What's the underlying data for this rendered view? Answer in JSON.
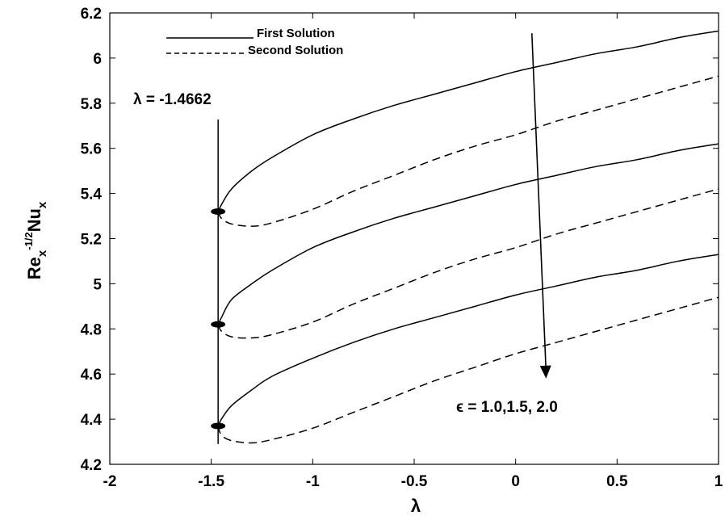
{
  "chart_data": {
    "type": "line",
    "xlabel": "λ",
    "ylabel_parts": {
      "base1": "Re",
      "sub1": "x",
      "sup1": "-1/2",
      "base2": "Nu",
      "sub2": "x"
    },
    "xlim": [
      -2,
      1
    ],
    "ylim": [
      4.2,
      6.2
    ],
    "xticks": [
      -2,
      -1.5,
      -1,
      -0.5,
      0,
      0.5,
      1
    ],
    "xtick_labels": [
      "-2",
      "-1.5",
      "-1",
      "-0.5",
      "0",
      "0.5",
      "1"
    ],
    "yticks": [
      4.2,
      4.4,
      4.6,
      4.8,
      5.0,
      5.2,
      5.4,
      5.6,
      5.8,
      6.0,
      6.2
    ],
    "ytick_labels": [
      "4.2",
      "4.4",
      "4.6",
      "4.8",
      "5",
      "5.2",
      "5.4",
      "5.6",
      "5.8",
      "6",
      "6.2"
    ],
    "legend": {
      "placement": "top-left",
      "entries": [
        {
          "style": "solid",
          "label": "First Solution"
        },
        {
          "style": "dashed",
          "label": "Second Solution"
        }
      ]
    },
    "annotations": {
      "critical_label": "λ = -1.4662",
      "critical_x": -1.4662,
      "epsilon_label": "ϵ = 1.0,1.5, 2.0",
      "arrow_from": [
        0.08,
        6.11
      ],
      "arrow_to": [
        0.15,
        4.58
      ]
    },
    "series": [
      {
        "style": "solid",
        "points": [
          [
            -1.4662,
            5.32
          ],
          [
            -1.45,
            5.35
          ],
          [
            -1.4,
            5.42
          ],
          [
            -1.3,
            5.5
          ],
          [
            -1.2,
            5.56
          ],
          [
            -1.0,
            5.66
          ],
          [
            -0.8,
            5.73
          ],
          [
            -0.6,
            5.79
          ],
          [
            -0.4,
            5.84
          ],
          [
            -0.2,
            5.89
          ],
          [
            0,
            5.94
          ],
          [
            0.2,
            5.98
          ],
          [
            0.4,
            6.02
          ],
          [
            0.6,
            6.05
          ],
          [
            0.8,
            6.09
          ],
          [
            1.0,
            6.12
          ]
        ]
      },
      {
        "style": "dashed",
        "points": [
          [
            -1.4662,
            5.32
          ],
          [
            -1.45,
            5.29
          ],
          [
            -1.4,
            5.265
          ],
          [
            -1.3,
            5.255
          ],
          [
            -1.2,
            5.27
          ],
          [
            -1.0,
            5.33
          ],
          [
            -0.8,
            5.41
          ],
          [
            -0.6,
            5.48
          ],
          [
            -0.4,
            5.55
          ],
          [
            -0.2,
            5.61
          ],
          [
            0,
            5.66
          ],
          [
            0.2,
            5.72
          ],
          [
            0.4,
            5.77
          ],
          [
            0.6,
            5.82
          ],
          [
            0.8,
            5.87
          ],
          [
            1.0,
            5.92
          ]
        ]
      },
      {
        "style": "solid",
        "points": [
          [
            -1.4662,
            4.82
          ],
          [
            -1.45,
            4.85
          ],
          [
            -1.4,
            4.93
          ],
          [
            -1.3,
            5.0
          ],
          [
            -1.2,
            5.06
          ],
          [
            -1.0,
            5.16
          ],
          [
            -0.8,
            5.23
          ],
          [
            -0.6,
            5.29
          ],
          [
            -0.4,
            5.34
          ],
          [
            -0.2,
            5.39
          ],
          [
            0,
            5.44
          ],
          [
            0.2,
            5.48
          ],
          [
            0.4,
            5.52
          ],
          [
            0.6,
            5.55
          ],
          [
            0.8,
            5.59
          ],
          [
            1.0,
            5.62
          ]
        ]
      },
      {
        "style": "dashed",
        "points": [
          [
            -1.4662,
            4.82
          ],
          [
            -1.45,
            4.79
          ],
          [
            -1.4,
            4.765
          ],
          [
            -1.3,
            4.76
          ],
          [
            -1.2,
            4.775
          ],
          [
            -1.0,
            4.83
          ],
          [
            -0.8,
            4.91
          ],
          [
            -0.6,
            4.98
          ],
          [
            -0.4,
            5.05
          ],
          [
            -0.2,
            5.11
          ],
          [
            0,
            5.16
          ],
          [
            0.2,
            5.22
          ],
          [
            0.4,
            5.27
          ],
          [
            0.6,
            5.32
          ],
          [
            0.8,
            5.37
          ],
          [
            1.0,
            5.42
          ]
        ]
      },
      {
        "style": "solid",
        "points": [
          [
            -1.4662,
            4.37
          ],
          [
            -1.45,
            4.4
          ],
          [
            -1.4,
            4.46
          ],
          [
            -1.3,
            4.53
          ],
          [
            -1.2,
            4.59
          ],
          [
            -1.0,
            4.67
          ],
          [
            -0.8,
            4.74
          ],
          [
            -0.6,
            4.8
          ],
          [
            -0.4,
            4.85
          ],
          [
            -0.2,
            4.9
          ],
          [
            0,
            4.95
          ],
          [
            0.2,
            4.99
          ],
          [
            0.4,
            5.03
          ],
          [
            0.6,
            5.06
          ],
          [
            0.8,
            5.1
          ],
          [
            1.0,
            5.13
          ]
        ]
      },
      {
        "style": "dashed",
        "points": [
          [
            -1.4662,
            4.37
          ],
          [
            -1.45,
            4.33
          ],
          [
            -1.4,
            4.305
          ],
          [
            -1.3,
            4.295
          ],
          [
            -1.2,
            4.31
          ],
          [
            -1.0,
            4.36
          ],
          [
            -0.8,
            4.43
          ],
          [
            -0.6,
            4.5
          ],
          [
            -0.4,
            4.57
          ],
          [
            -0.2,
            4.63
          ],
          [
            0,
            4.69
          ],
          [
            0.2,
            4.74
          ],
          [
            0.4,
            4.79
          ],
          [
            0.6,
            4.84
          ],
          [
            0.8,
            4.89
          ],
          [
            1.0,
            4.94
          ]
        ]
      }
    ],
    "grid": false
  }
}
